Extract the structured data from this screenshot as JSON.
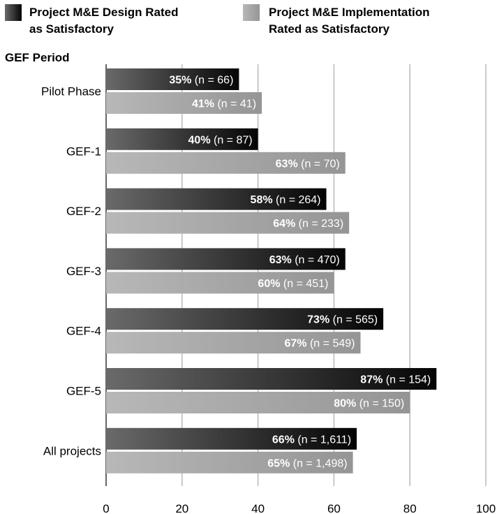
{
  "chart_data": {
    "type": "bar",
    "orientation": "horizontal",
    "title": "",
    "ylabel": "GEF Period",
    "xlabel": "",
    "xlim": [
      0,
      100
    ],
    "xticks": [
      0,
      20,
      40,
      60,
      80,
      100
    ],
    "grid": true,
    "legend_position": "top",
    "categories": [
      "Pilot Phase",
      "GEF-1",
      "GEF-2",
      "GEF-3",
      "GEF-4",
      "GEF-5",
      "All projects"
    ],
    "series": [
      {
        "name": "Project M&E Design Rated as Satisfactory",
        "legend_lines": [
          "Project M&E Design Rated",
          "as Satisfactory"
        ],
        "values": [
          35,
          40,
          58,
          63,
          73,
          87,
          66
        ],
        "pct_labels": [
          "35%",
          "40%",
          "58%",
          "63%",
          "73%",
          "87%",
          "66%"
        ],
        "n_labels": [
          "(n = 66)",
          "(n = 87)",
          "(n = 264)",
          "(n = 470)",
          "(n = 565)",
          "(n = 154)",
          "(n = 1,611)"
        ],
        "color_start": "#6a6a6a",
        "color_end": "#050505"
      },
      {
        "name": "Project M&E Implementation Rated as Satisfactory",
        "legend_lines": [
          "Project M&E Implementation",
          "Rated as Satisfactory"
        ],
        "values": [
          41,
          63,
          64,
          60,
          67,
          80,
          65
        ],
        "pct_labels": [
          "41%",
          "63%",
          "64%",
          "60%",
          "67%",
          "80%",
          "65%"
        ],
        "n_labels": [
          "(n = 41)",
          "(n = 70)",
          "(n = 233)",
          "(n = 451)",
          "(n = 549)",
          "(n = 150)",
          "(n = 1,498)"
        ],
        "color_start": "#b8b8b8",
        "color_end": "#959595"
      }
    ]
  }
}
